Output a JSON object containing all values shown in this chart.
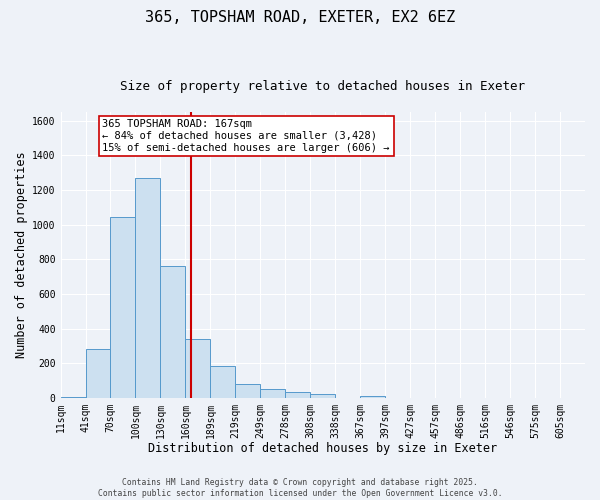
{
  "title": "365, TOPSHAM ROAD, EXETER, EX2 6EZ",
  "subtitle": "Size of property relative to detached houses in Exeter",
  "xlabel": "Distribution of detached houses by size in Exeter",
  "ylabel": "Number of detached properties",
  "bin_labels": [
    "11sqm",
    "41sqm",
    "70sqm",
    "100sqm",
    "130sqm",
    "160sqm",
    "189sqm",
    "219sqm",
    "249sqm",
    "278sqm",
    "308sqm",
    "338sqm",
    "367sqm",
    "397sqm",
    "427sqm",
    "457sqm",
    "486sqm",
    "516sqm",
    "546sqm",
    "575sqm",
    "605sqm"
  ],
  "bar_values": [
    5,
    280,
    1045,
    1270,
    760,
    340,
    185,
    80,
    50,
    35,
    20,
    0,
    10,
    0,
    0,
    0,
    0,
    0,
    0,
    0,
    0
  ],
  "bar_color": "#cce0f0",
  "bar_edge_color": "#5599cc",
  "vline_x": 5.23,
  "vline_color": "#cc0000",
  "annotation_title": "365 TOPSHAM ROAD: 167sqm",
  "annotation_line1": "← 84% of detached houses are smaller (3,428)",
  "annotation_line2": "15% of semi-detached houses are larger (606) →",
  "annotation_box_color": "#ffffff",
  "annotation_box_edge": "#cc0000",
  "footer1": "Contains HM Land Registry data © Crown copyright and database right 2025.",
  "footer2": "Contains public sector information licensed under the Open Government Licence v3.0.",
  "ylim": [
    0,
    1650
  ],
  "background_color": "#eef2f8",
  "grid_color": "#ffffff",
  "title_fontsize": 11,
  "subtitle_fontsize": 9,
  "axis_label_fontsize": 8.5,
  "tick_fontsize": 7,
  "annotation_fontsize": 7.5,
  "footer_fontsize": 5.8
}
